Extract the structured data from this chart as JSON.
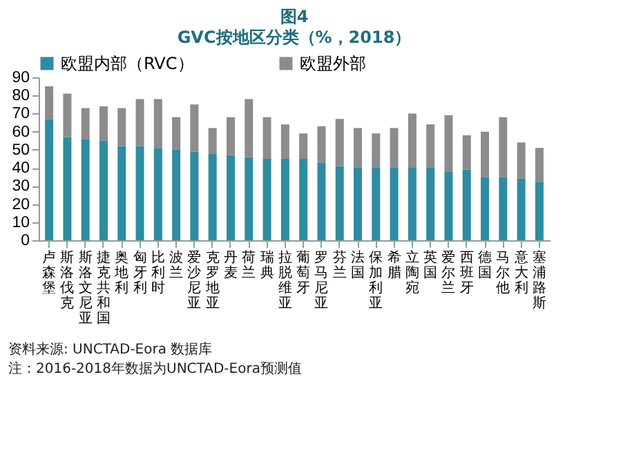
{
  "chart_data": {
    "type": "bar",
    "title": "图4",
    "subtitle": "GVC按地区分类（%，2018）",
    "stacked": true,
    "legend": "top",
    "grid": false,
    "categories": [
      "卢森堡",
      "斯洛伐克",
      "斯洛文尼亚",
      "捷克共和国",
      "奥地利",
      "匈牙利",
      "比利时",
      "波兰",
      "爱沙尼亚",
      "克罗地亚",
      "丹麦",
      "荷兰",
      "瑞典",
      "拉脱维亚",
      "葡萄牙",
      "罗马尼亚",
      "芬兰",
      "法国",
      "保加利亚",
      "希腊",
      "立陶宛",
      "英国",
      "爱尔兰",
      "西班牙",
      "德国",
      "马尔他",
      "意大利",
      "塞浦路斯"
    ],
    "series": [
      {
        "name": "欧盟内部（RVC）",
        "color": "#2e8ca1",
        "values": [
          67,
          57,
          56,
          55,
          52,
          52,
          51,
          50,
          49,
          48,
          47,
          46,
          45,
          45,
          45,
          43,
          41,
          40,
          40,
          40,
          40,
          40,
          38,
          39,
          35,
          35,
          34,
          32
        ]
      },
      {
        "name": "欧盟外部",
        "color": "#8c8c8c",
        "values": [
          18,
          24,
          17,
          19,
          21,
          26,
          27,
          18,
          26,
          14,
          21,
          32,
          23,
          19,
          14,
          20,
          26,
          22,
          19,
          22,
          30,
          24,
          31,
          19,
          25,
          33,
          20,
          19
        ]
      }
    ],
    "ylim": [
      0,
      90
    ],
    "yticks": [
      0,
      10,
      20,
      30,
      40,
      50,
      60,
      70,
      80,
      90
    ],
    "annotations": [
      "资料来源: UNCTAD-Eora 数据库",
      "注：2016-2018年数据为UNCTAD-Eora预测值"
    ]
  }
}
